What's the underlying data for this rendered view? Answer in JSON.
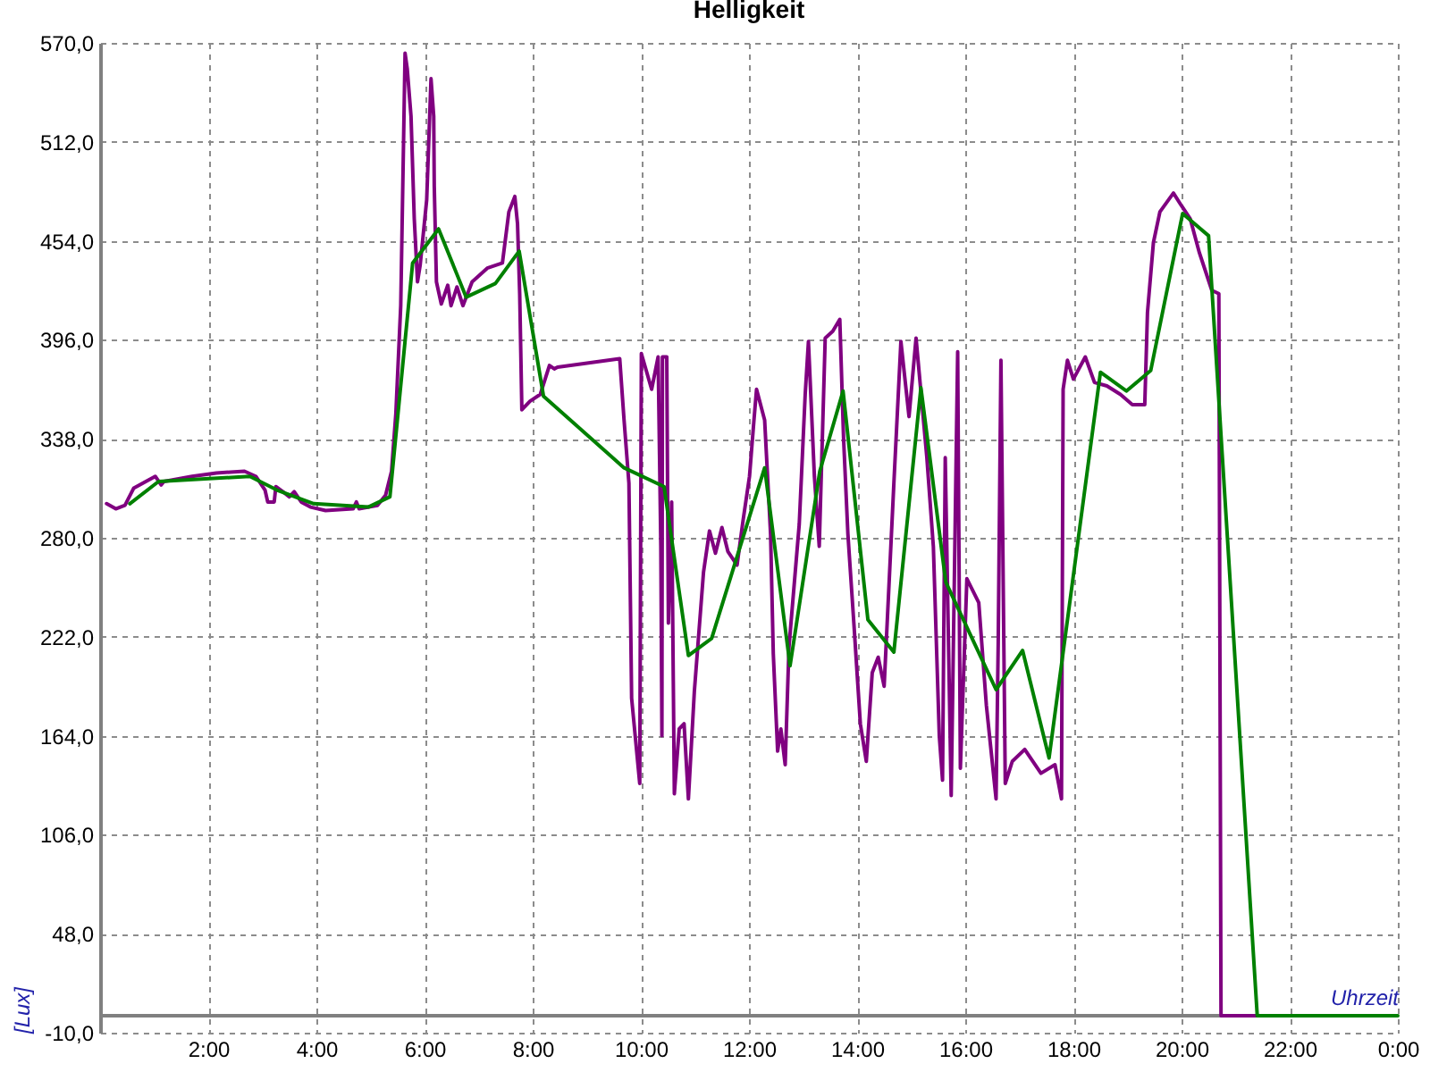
{
  "chart_data": {
    "type": "line",
    "title": "Helligkeit",
    "xlabel": "Uhrzeit",
    "ylabel": "[Lux]",
    "xlim": [
      0,
      24
    ],
    "ylim": [
      -10,
      570
    ],
    "xticks": [
      {
        "value": 2,
        "label": "2:00"
      },
      {
        "value": 4,
        "label": "4:00"
      },
      {
        "value": 6,
        "label": "6:00"
      },
      {
        "value": 8,
        "label": "8:00"
      },
      {
        "value": 10,
        "label": "10:00"
      },
      {
        "value": 12,
        "label": "12:00"
      },
      {
        "value": 14,
        "label": "14:00"
      },
      {
        "value": 16,
        "label": "16:00"
      },
      {
        "value": 18,
        "label": "18:00"
      },
      {
        "value": 20,
        "label": "20:00"
      },
      {
        "value": 22,
        "label": "22:00"
      },
      {
        "value": 24,
        "label": "0:00"
      }
    ],
    "yticks": [
      {
        "value": -10,
        "label": "-10,0"
      },
      {
        "value": 48,
        "label": "48,0"
      },
      {
        "value": 106,
        "label": "106,0"
      },
      {
        "value": 164,
        "label": "164,0"
      },
      {
        "value": 222,
        "label": "222,0"
      },
      {
        "value": 280,
        "label": "280,0"
      },
      {
        "value": 338,
        "label": "338,0"
      },
      {
        "value": 396,
        "label": "396,0"
      },
      {
        "value": 454,
        "label": "454,0"
      },
      {
        "value": 512,
        "label": "512,0"
      },
      {
        "value": 570,
        "label": "570,0"
      }
    ],
    "grid": true,
    "ref_lines": [
      {
        "axis": "y",
        "value": 0,
        "color": "#808080"
      }
    ],
    "series": [
      {
        "color": "#800080",
        "x": [
          0.12,
          0.29,
          0.46,
          0.62,
          1.02,
          1.13,
          1.18,
          1.7,
          2.15,
          2.67,
          2.88,
          3.05,
          3.1,
          3.22,
          3.25,
          3.38,
          3.5,
          3.59,
          3.72,
          3.89,
          4.17,
          4.68,
          4.74,
          4.79,
          5.13,
          5.28,
          5.39,
          5.47,
          5.56,
          5.64,
          5.68,
          5.75,
          5.81,
          5.87,
          5.92,
          6.04,
          6.12,
          6.17,
          6.18,
          6.22,
          6.31,
          6.43,
          6.49,
          6.6,
          6.71,
          6.88,
          7.16,
          7.44,
          7.56,
          7.67,
          7.72,
          7.76,
          7.8,
          7.95,
          8.14,
          8.31,
          8.4,
          8.46,
          9.61,
          9.69,
          9.78,
          9.83,
          9.98,
          10.01,
          10.2,
          10.32,
          10.37,
          10.39,
          10.4,
          10.48,
          10.51,
          10.57,
          10.62,
          10.71,
          10.8,
          10.88,
          10.99,
          11.16,
          11.27,
          11.38,
          11.5,
          11.61,
          11.78,
          11.89,
          12.01,
          12.09,
          12.14,
          12.29,
          12.4,
          12.45,
          12.53,
          12.59,
          12.67,
          12.74,
          12.93,
          13.04,
          13.1,
          13.21,
          13.3,
          13.41,
          13.55,
          13.68,
          13.75,
          13.83,
          13.94,
          14.06,
          14.17,
          14.28,
          14.39,
          14.5,
          14.68,
          14.81,
          14.96,
          15.09,
          15.29,
          15.41,
          15.52,
          15.58,
          15.63,
          15.74,
          15.86,
          15.91,
          16.03,
          16.25,
          16.39,
          16.57,
          16.61,
          16.66,
          16.74,
          16.87,
          17.1,
          17.4,
          17.66,
          17.78,
          17.81,
          17.89,
          18.0,
          18.22,
          18.39,
          18.62,
          18.87,
          19.09,
          19.32,
          19.37,
          19.48,
          19.6,
          19.85,
          19.99,
          20.16,
          20.33,
          20.56,
          20.69,
          20.73,
          21.4
        ],
        "values": [
          300,
          297,
          299,
          309,
          316,
          311,
          313,
          316,
          318,
          319,
          316,
          308,
          301,
          301,
          310,
          307,
          304,
          307,
          301,
          298,
          296,
          297,
          301,
          297,
          299,
          305,
          319,
          353,
          416,
          564,
          555,
          527,
          467,
          430,
          440,
          478,
          549,
          527,
          486,
          430,
          417,
          428,
          416,
          427,
          416,
          430,
          438,
          441,
          471,
          480,
          464,
          423,
          355,
          360,
          364,
          381,
          379,
          380,
          385,
          349,
          312,
          186,
          136,
          388,
          367,
          386,
          275,
          164,
          386,
          386,
          230,
          301,
          130,
          168,
          171,
          127,
          190,
          260,
          284,
          271,
          286,
          272,
          264,
          290,
          316,
          348,
          367,
          349,
          282,
          212,
          155,
          168,
          147,
          216,
          288,
          364,
          395,
          316,
          275,
          397,
          401,
          408,
          338,
          282,
          230,
          171,
          149,
          201,
          210,
          193,
          312,
          395,
          351,
          397,
          327,
          275,
          164,
          138,
          327,
          129,
          389,
          145,
          256,
          242,
          182,
          127,
          219,
          384,
          136,
          149,
          156,
          142,
          147,
          127,
          367,
          384,
          373,
          386,
          371,
          369,
          364,
          358,
          358,
          412,
          453,
          471,
          482,
          475,
          467,
          447,
          425,
          423,
          0,
          0
        ]
      },
      {
        "color": "#008000",
        "x": [
          0.55,
          1.08,
          2.77,
          3.27,
          3.95,
          4.96,
          5.36,
          5.78,
          6.26,
          6.77,
          7.31,
          7.75,
          8.2,
          9.69,
          10.43,
          10.88,
          11.31,
          12.29,
          12.76,
          13.31,
          13.74,
          14.2,
          14.68,
          15.18,
          15.64,
          16.57,
          17.06,
          17.55,
          18.5,
          18.98,
          19.43,
          20.02,
          20.5,
          21.4,
          24.0
        ],
        "values": [
          300,
          313,
          316,
          308,
          300,
          298,
          304,
          441,
          461,
          421,
          429,
          448,
          363,
          321,
          310,
          211,
          221,
          321,
          205,
          319,
          366,
          232,
          213,
          368,
          254,
          191,
          214,
          151,
          377,
          366,
          378,
          470,
          457,
          0,
          0
        ]
      }
    ]
  }
}
